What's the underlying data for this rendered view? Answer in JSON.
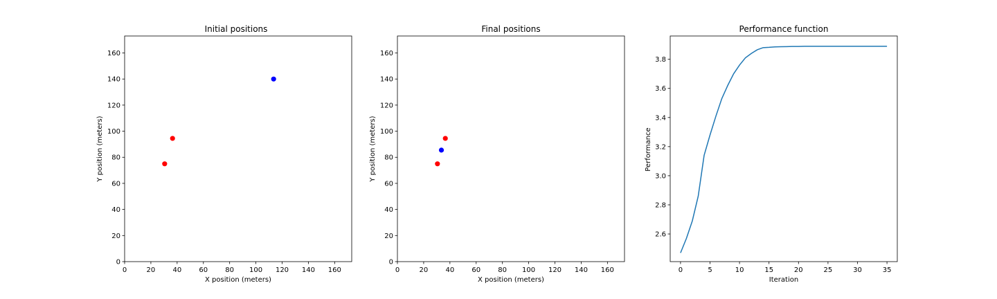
{
  "chart_data": [
    {
      "type": "scatter",
      "title": "Initial positions",
      "xlabel": "X position (meters)",
      "ylabel": "Y position (meters)",
      "xlim": [
        0,
        173
      ],
      "ylim": [
        0,
        173
      ],
      "xticks": [
        0,
        20,
        40,
        60,
        80,
        100,
        120,
        140,
        160
      ],
      "yticks": [
        0,
        20,
        40,
        60,
        80,
        100,
        120,
        140,
        160
      ],
      "series": [
        {
          "color": "#ff0000",
          "points": [
            [
              30.5,
              75
            ],
            [
              36.5,
              94.5
            ]
          ]
        },
        {
          "color": "#0000ff",
          "points": [
            [
              113.5,
              140
            ]
          ]
        }
      ]
    },
    {
      "type": "scatter",
      "title": "Final positions",
      "xlabel": "X position (meters)",
      "ylabel": "Y position (meters)",
      "xlim": [
        0,
        173
      ],
      "ylim": [
        0,
        173
      ],
      "xticks": [
        0,
        20,
        40,
        60,
        80,
        100,
        120,
        140,
        160
      ],
      "yticks": [
        0,
        20,
        40,
        60,
        80,
        100,
        120,
        140,
        160
      ],
      "series": [
        {
          "color": "#ff0000",
          "points": [
            [
              30.5,
              75
            ],
            [
              36.5,
              94.5
            ]
          ]
        },
        {
          "color": "#0000ff",
          "points": [
            [
              33.5,
              85.5
            ]
          ]
        }
      ]
    },
    {
      "type": "line",
      "title": "Performance function",
      "xlabel": "Iteration",
      "ylabel": "Performance",
      "xlim": [
        -1.75,
        36.75
      ],
      "ylim": [
        2.41,
        3.96
      ],
      "xticks": [
        0,
        5,
        10,
        15,
        20,
        25,
        30,
        35
      ],
      "yticks": [
        2.6,
        2.8,
        3.0,
        3.2,
        3.4,
        3.6,
        3.8
      ],
      "yticklabels": [
        "2.6",
        "2.8",
        "3.0",
        "3.2",
        "3.4",
        "3.6",
        "3.8"
      ],
      "series": [
        {
          "color": "#1f77b4",
          "x": [
            0,
            1,
            2,
            3,
            4,
            5,
            6,
            7,
            8,
            9,
            10,
            11,
            12,
            13,
            14,
            15,
            16,
            17,
            18,
            19,
            20,
            21,
            22,
            23,
            24,
            25,
            26,
            27,
            28,
            29,
            30,
            31,
            32,
            33,
            34,
            35
          ],
          "values": [
            2.47,
            2.57,
            2.69,
            2.86,
            3.14,
            3.28,
            3.41,
            3.53,
            3.62,
            3.7,
            3.76,
            3.81,
            3.84,
            3.865,
            3.88,
            3.882,
            3.885,
            3.886,
            3.887,
            3.888,
            3.888,
            3.889,
            3.889,
            3.889,
            3.889,
            3.889,
            3.889,
            3.889,
            3.889,
            3.889,
            3.889,
            3.889,
            3.889,
            3.889,
            3.889,
            3.889
          ]
        }
      ]
    }
  ]
}
